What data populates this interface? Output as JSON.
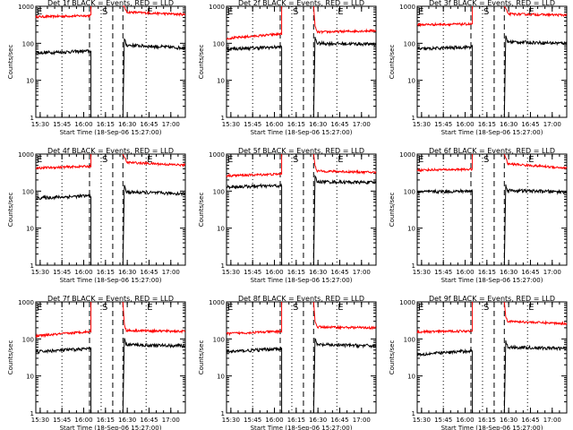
{
  "chart_data": {
    "type": "line",
    "layout": "3x3 grid",
    "y_scale": "log",
    "ylim": [
      1,
      1000
    ],
    "y_ticks": [
      "1",
      "10",
      "100",
      "1000"
    ],
    "ylabel": "Counts/sec",
    "xlabel": "Start Time (18-Sep-06 15:27:00)",
    "x_ticks": [
      "15:30",
      "15:45",
      "16:00",
      "16:15",
      "16:30",
      "16:45",
      "17:00"
    ],
    "xlim": [
      "15:27",
      "17:10"
    ],
    "markers": [
      {
        "label": "E",
        "time": "15:27",
        "style": "dotted"
      },
      {
        "label": "",
        "time": "15:45",
        "style": "dotted"
      },
      {
        "label": "",
        "time": "16:04",
        "style": "dashed"
      },
      {
        "label": "S",
        "time": "16:12",
        "style": "dotted"
      },
      {
        "label": "",
        "time": "16:20",
        "style": "dashed"
      },
      {
        "label": "",
        "time": "16:27",
        "style": "dashed"
      },
      {
        "label": "E",
        "time": "16:43",
        "style": "dotted"
      }
    ],
    "gaps": [
      [
        "16:05",
        "16:12"
      ],
      [
        "16:16",
        "16:27"
      ]
    ],
    "series_colors": {
      "events": "#000000",
      "lld": "#ff0000"
    },
    "panels": [
      {
        "title": "Det 1f BLACK = Events, RED = LLD",
        "lld": [
          520,
          560,
          1000,
          1000,
          700,
          600
        ],
        "events": [
          55,
          62,
          1,
          1,
          90,
          75
        ]
      },
      {
        "title": "Det 2f BLACK = Events, RED = LLD",
        "lld": [
          135,
          180,
          1000,
          1000,
          200,
          220
        ],
        "events": [
          70,
          80,
          1,
          1,
          100,
          95
        ]
      },
      {
        "title": "Det 3f BLACK = Events, RED = LLD",
        "lld": [
          320,
          330,
          1000,
          1000,
          620,
          580
        ],
        "events": [
          70,
          80,
          1,
          1,
          110,
          100
        ]
      },
      {
        "title": "Det 4f BLACK = Events, RED = LLD",
        "lld": [
          420,
          470,
          1000,
          1000,
          600,
          500
        ],
        "events": [
          65,
          75,
          1,
          1,
          95,
          85
        ]
      },
      {
        "title": "Det 5f BLACK = Events, RED = LLD",
        "lld": [
          260,
          290,
          1000,
          1000,
          350,
          320
        ],
        "events": [
          130,
          140,
          1,
          1,
          180,
          170
        ]
      },
      {
        "title": "Det 6f BLACK = Events, RED = LLD",
        "lld": [
          370,
          390,
          1000,
          1000,
          550,
          420
        ],
        "events": [
          95,
          100,
          1,
          1,
          105,
          95
        ]
      },
      {
        "title": "Det 7f BLACK = Events, RED = LLD",
        "lld": [
          120,
          160,
          1000,
          1000,
          170,
          160
        ],
        "events": [
          45,
          55,
          1,
          1,
          70,
          65
        ]
      },
      {
        "title": "Det 8f BLACK = Events, RED = LLD",
        "lld": [
          140,
          160,
          1000,
          1000,
          210,
          200
        ],
        "events": [
          45,
          55,
          1,
          1,
          70,
          65
        ]
      },
      {
        "title": "Det 9f BLACK = Events, RED = LLD",
        "lld": [
          155,
          165,
          1000,
          1000,
          300,
          260
        ],
        "events": [
          38,
          48,
          1,
          1,
          60,
          55
        ]
      }
    ]
  }
}
